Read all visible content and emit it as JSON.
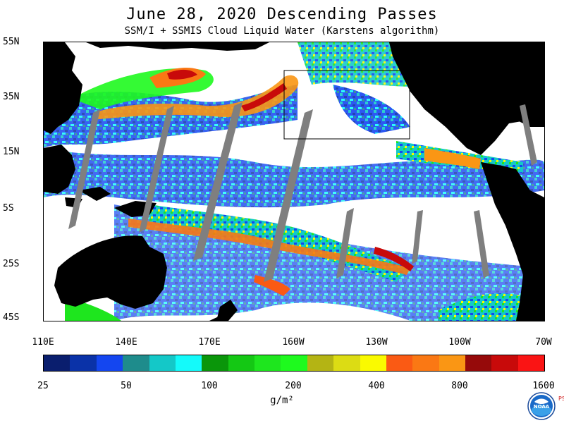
{
  "title": "June 28, 2020  Descending Passes",
  "subtitle": "SSM/I + SSMIS Cloud Liquid Water (Karstens algorithm)",
  "map": {
    "lat_labels": [
      "55N",
      "35N",
      "15N",
      "5S",
      "25S",
      "45S"
    ],
    "lon_labels": [
      "110E",
      "140E",
      "170E",
      "160W",
      "130W",
      "100W",
      "70W"
    ],
    "land_color": "#000000",
    "no_data_color": "#ffffff",
    "swath_gap_color": "#7f7f7f"
  },
  "colorbar": {
    "colors": [
      "#0a1e6e",
      "#0a32a8",
      "#1446f0",
      "#1e8c8c",
      "#14c8c8",
      "#14fafa",
      "#0a960a",
      "#14c814",
      "#1ee61e",
      "#1efa1e",
      "#b4b414",
      "#dcdc14",
      "#fafa00",
      "#fa5a14",
      "#fa7814",
      "#fa9614",
      "#960a0a",
      "#c80a0a",
      "#fa1414"
    ],
    "tick_labels": [
      "25",
      "50",
      "100",
      "200",
      "400",
      "800",
      "1600"
    ],
    "units": "g/m²"
  },
  "logo": {
    "name": "NOAA",
    "psl": "PSL"
  }
}
